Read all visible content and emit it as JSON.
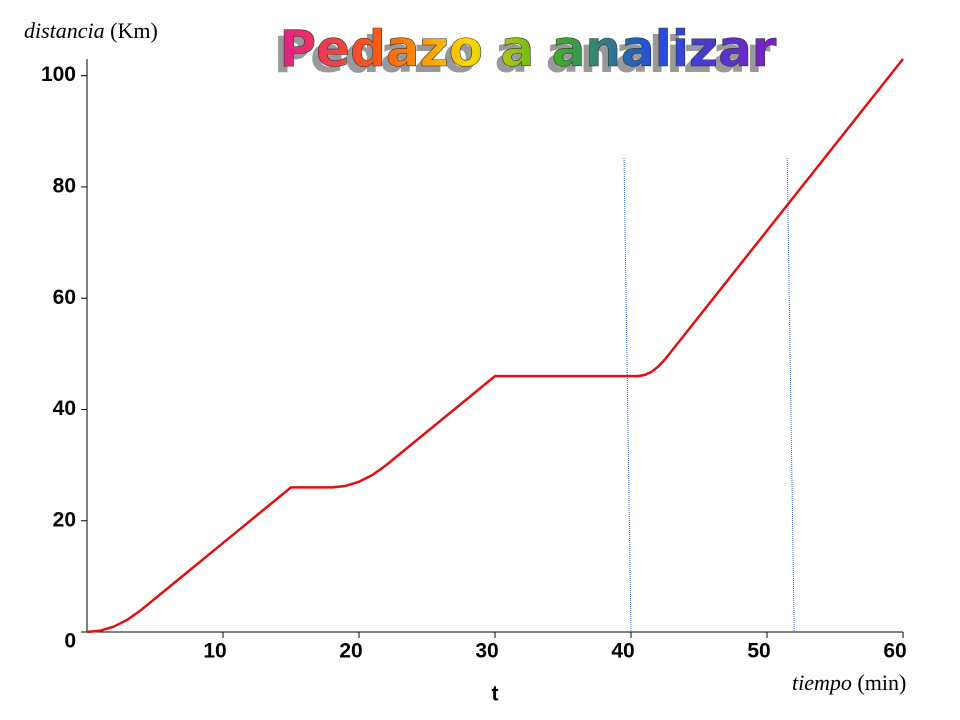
{
  "chart_data": {
    "type": "line",
    "title": "Pedazo a analizar",
    "ylabel": "distancia",
    "yunit": "(Km)",
    "xlabel": "tiempo",
    "xunit": "(min)",
    "xvar": "t",
    "x": [
      0,
      1,
      2,
      3,
      4,
      15,
      18,
      19,
      20,
      21,
      22,
      30,
      40.5,
      41,
      41.5,
      42,
      42.5,
      60
    ],
    "series": [
      {
        "name": "distancia",
        "color": "#e01010",
        "values": [
          0,
          0.25,
          1,
          2.25,
          4,
          26,
          26,
          26.25,
          27,
          28.25,
          30,
          46,
          46,
          46.2,
          46.75,
          47.7,
          49,
          103
        ]
      }
    ],
    "vlines": [
      40,
      52
    ],
    "vline_color": "#3a6fd0",
    "xlim": [
      0,
      60
    ],
    "ylim": [
      0,
      103
    ],
    "xticks": [
      10,
      20,
      30,
      40,
      50,
      60
    ],
    "yticks": [
      0,
      20,
      40,
      60,
      80,
      100
    ]
  }
}
